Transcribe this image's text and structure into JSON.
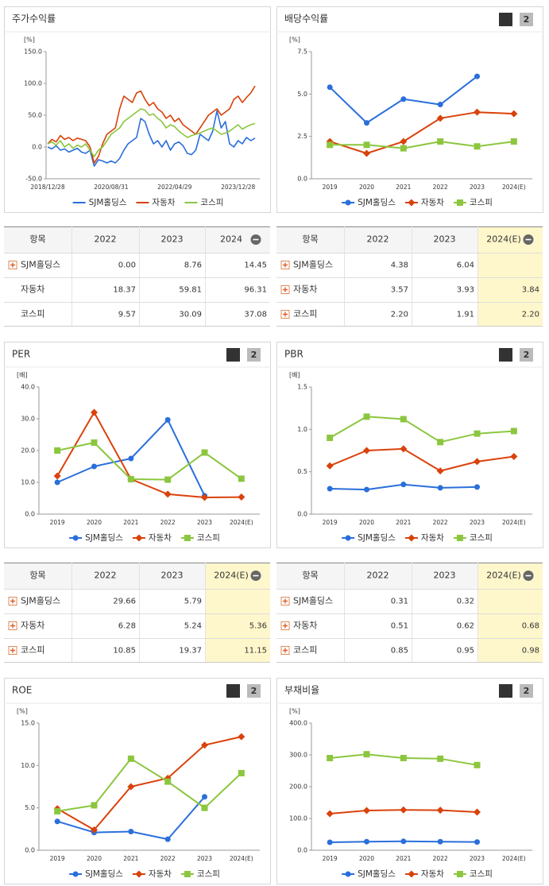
{
  "chart_data": [
    {
      "type": "line",
      "title": "주가수익률",
      "unit": "[%]",
      "markers": false,
      "categories": [
        "2018/12/28",
        null,
        null,
        null,
        null,
        null,
        null,
        null,
        null,
        null,
        null,
        null,
        null,
        null,
        null,
        "2020/08/31",
        null,
        null,
        null,
        null,
        null,
        null,
        null,
        null,
        null,
        null,
        null,
        null,
        null,
        null,
        "2022/04/29",
        null,
        null,
        null,
        null,
        null,
        null,
        null,
        null,
        null,
        null,
        null,
        null,
        null,
        null,
        "2023/12/28",
        null,
        null,
        null,
        null
      ],
      "ylim": [
        -50,
        150
      ],
      "yticks": [
        {
          "value": -50,
          "label": "-50.0"
        },
        {
          "value": 0,
          "label": "0.0"
        },
        {
          "value": 50,
          "label": "50.0"
        },
        {
          "value": 100,
          "label": "100.0"
        },
        {
          "value": 150,
          "label": "150.0"
        }
      ],
      "series": [
        {
          "name": "SJM홀딩스",
          "color": "#2a6fdb",
          "values": [
            0,
            -3,
            2,
            -5,
            -3,
            -8,
            -5,
            -2,
            -8,
            -10,
            -5,
            -30,
            -20,
            -22,
            -25,
            -22,
            -25,
            -18,
            -5,
            5,
            10,
            15,
            45,
            40,
            20,
            5,
            10,
            0,
            10,
            -5,
            5,
            8,
            2,
            -10,
            -12,
            -5,
            20,
            15,
            10,
            25,
            57,
            30,
            40,
            5,
            0,
            10,
            5,
            15,
            10,
            14
          ]
        },
        {
          "name": "자동차",
          "color": "#d9420b",
          "values": [
            5,
            12,
            8,
            18,
            12,
            15,
            10,
            14,
            12,
            10,
            0,
            -25,
            -15,
            5,
            20,
            25,
            30,
            60,
            80,
            75,
            70,
            85,
            88,
            75,
            65,
            70,
            60,
            55,
            45,
            50,
            40,
            45,
            35,
            30,
            25,
            20,
            30,
            40,
            50,
            55,
            60,
            50,
            55,
            60,
            75,
            80,
            70,
            78,
            85,
            96
          ]
        },
        {
          "name": "코스피",
          "color": "#8cc63f",
          "values": [
            5,
            8,
            3,
            10,
            0,
            5,
            -2,
            3,
            0,
            5,
            -5,
            -15,
            -5,
            0,
            10,
            20,
            25,
            30,
            40,
            45,
            50,
            55,
            60,
            58,
            50,
            52,
            45,
            40,
            30,
            35,
            32,
            25,
            20,
            15,
            18,
            20,
            22,
            25,
            28,
            30,
            25,
            20,
            22,
            25,
            30,
            35,
            28,
            32,
            35,
            37
          ]
        }
      ]
    },
    {
      "type": "line",
      "title": "배당수익률",
      "unit": "[%]",
      "buttons": [
        "1",
        "2"
      ],
      "categories": [
        "2019",
        "2020",
        "2021",
        "2022",
        "2023",
        "2024(E)"
      ],
      "ylim": [
        0,
        7.5
      ],
      "yticks": [
        {
          "value": 0,
          "label": "0.0"
        },
        {
          "value": 2.5,
          "label": "2.5"
        },
        {
          "value": 5,
          "label": "5.0"
        },
        {
          "value": 7.5,
          "label": "7.5"
        }
      ],
      "series": [
        {
          "name": "SJM홀딩스",
          "color": "#2a6fdb",
          "values": [
            5.4,
            3.3,
            4.7,
            4.38,
            6.04,
            null
          ]
        },
        {
          "name": "자동차",
          "color": "#d9420b",
          "values": [
            2.2,
            1.5,
            2.2,
            3.57,
            3.93,
            3.84
          ]
        },
        {
          "name": "코스피",
          "color": "#8cc63f",
          "values": [
            2.0,
            2.0,
            1.8,
            2.2,
            1.91,
            2.2
          ]
        }
      ]
    },
    {
      "type": "line",
      "title": "PER",
      "unit": "[배]",
      "buttons": [
        "1",
        "2"
      ],
      "categories": [
        "2019",
        "2020",
        "2021",
        "2022",
        "2023",
        "2024(E)"
      ],
      "ylim": [
        0,
        40
      ],
      "yticks": [
        {
          "value": 0,
          "label": "0.0"
        },
        {
          "value": 10,
          "label": "10.0"
        },
        {
          "value": 20,
          "label": "20.0"
        },
        {
          "value": 30,
          "label": "30.0"
        },
        {
          "value": 40,
          "label": "40.0"
        }
      ],
      "series": [
        {
          "name": "SJM홀딩스",
          "color": "#2a6fdb",
          "values": [
            10,
            15,
            17.5,
            29.66,
            5.79,
            null
          ]
        },
        {
          "name": "자동차",
          "color": "#d9420b",
          "values": [
            12,
            32,
            11,
            6.28,
            5.24,
            5.36
          ]
        },
        {
          "name": "코스피",
          "color": "#8cc63f",
          "values": [
            20,
            22.5,
            11,
            10.85,
            19.37,
            11.15
          ]
        }
      ]
    },
    {
      "type": "line",
      "title": "PBR",
      "unit": "[배]",
      "buttons": [
        "1",
        "2"
      ],
      "categories": [
        "2019",
        "2020",
        "2021",
        "2022",
        "2023",
        "2024(E)"
      ],
      "ylim": [
        0,
        1.5
      ],
      "yticks": [
        {
          "value": 0,
          "label": "0.0"
        },
        {
          "value": 0.5,
          "label": "0.5"
        },
        {
          "value": 1,
          "label": "1.0"
        },
        {
          "value": 1.5,
          "label": "1.5"
        }
      ],
      "series": [
        {
          "name": "SJM홀딩스",
          "color": "#2a6fdb",
          "values": [
            0.3,
            0.29,
            0.35,
            0.31,
            0.32,
            null
          ]
        },
        {
          "name": "자동차",
          "color": "#d9420b",
          "values": [
            0.57,
            0.75,
            0.77,
            0.51,
            0.62,
            0.68
          ]
        },
        {
          "name": "코스피",
          "color": "#8cc63f",
          "values": [
            0.9,
            1.15,
            1.12,
            0.85,
            0.95,
            0.98
          ]
        }
      ]
    },
    {
      "type": "line",
      "title": "ROE",
      "unit": "[%]",
      "buttons": [
        "1",
        "2"
      ],
      "categories": [
        "2019",
        "2020",
        "2021",
        "2022",
        "2023",
        "2024(E)"
      ],
      "ylim": [
        0,
        15
      ],
      "yticks": [
        {
          "value": 0,
          "label": "0.0"
        },
        {
          "value": 5,
          "label": "5.0"
        },
        {
          "value": 10,
          "label": "10.0"
        },
        {
          "value": 15,
          "label": "15.0"
        }
      ],
      "series": [
        {
          "name": "SJM홀딩스",
          "color": "#2a6fdb",
          "values": [
            3.4,
            2.1,
            2.2,
            1.3,
            6.3,
            null
          ]
        },
        {
          "name": "자동차",
          "color": "#d9420b",
          "values": [
            4.9,
            2.4,
            7.5,
            8.5,
            12.4,
            13.4
          ]
        },
        {
          "name": "코스피",
          "color": "#8cc63f",
          "values": [
            4.6,
            5.3,
            10.8,
            8.1,
            5.0,
            9.1
          ]
        }
      ]
    },
    {
      "type": "line",
      "title": "부채비율",
      "unit": "[%]",
      "buttons": [
        "1",
        "2"
      ],
      "categories": [
        "2019",
        "2020",
        "2021",
        "2022",
        "2023",
        "2024(E)"
      ],
      "ylim": [
        0,
        400
      ],
      "yticks": [
        {
          "value": 0,
          "label": "0.0"
        },
        {
          "value": 100,
          "label": "100.0"
        },
        {
          "value": 200,
          "label": "200.0"
        },
        {
          "value": 300,
          "label": "300.0"
        },
        {
          "value": 400,
          "label": "400.0"
        }
      ],
      "series": [
        {
          "name": "SJM홀딩스",
          "color": "#2a6fdb",
          "values": [
            25,
            27,
            28,
            27,
            26,
            null
          ]
        },
        {
          "name": "자동차",
          "color": "#d9420b",
          "values": [
            115,
            125,
            127,
            126,
            120,
            null
          ]
        },
        {
          "name": "코스피",
          "color": "#8cc63f",
          "values": [
            290,
            302,
            290,
            288,
            268,
            null
          ]
        }
      ]
    }
  ],
  "tables": [
    {
      "header": [
        "항목",
        "2022",
        "2023",
        "2024"
      ],
      "highlight_last": false,
      "expandable": [
        true,
        false,
        false
      ],
      "rows": [
        [
          "SJM홀딩스",
          "0.00",
          "8.76",
          "14.45"
        ],
        [
          "자동차",
          "18.37",
          "59.81",
          "96.31"
        ],
        [
          "코스피",
          "9.57",
          "30.09",
          "37.08"
        ]
      ]
    },
    {
      "header": [
        "항목",
        "2022",
        "2023",
        "2024(E)"
      ],
      "highlight_last": true,
      "expandable": [
        true,
        true,
        true
      ],
      "rows": [
        [
          "SJM홀딩스",
          "4.38",
          "6.04",
          null
        ],
        [
          "자동차",
          "3.57",
          "3.93",
          "3.84"
        ],
        [
          "코스피",
          "2.20",
          "1.91",
          "2.20"
        ]
      ]
    },
    {
      "header": [
        "항목",
        "2022",
        "2023",
        "2024(E)"
      ],
      "highlight_last": true,
      "expandable": [
        true,
        true,
        true
      ],
      "rows": [
        [
          "SJM홀딩스",
          "29.66",
          "5.79",
          null
        ],
        [
          "자동차",
          "6.28",
          "5.24",
          "5.36"
        ],
        [
          "코스피",
          "10.85",
          "19.37",
          "11.15"
        ]
      ]
    },
    {
      "header": [
        "항목",
        "2022",
        "2023",
        "2024(E)"
      ],
      "highlight_last": true,
      "expandable": [
        true,
        true,
        true
      ],
      "rows": [
        [
          "SJM홀딩스",
          "0.31",
          "0.32",
          null
        ],
        [
          "자동차",
          "0.51",
          "0.62",
          "0.68"
        ],
        [
          "코스피",
          "0.85",
          "0.95",
          "0.98"
        ]
      ]
    }
  ]
}
